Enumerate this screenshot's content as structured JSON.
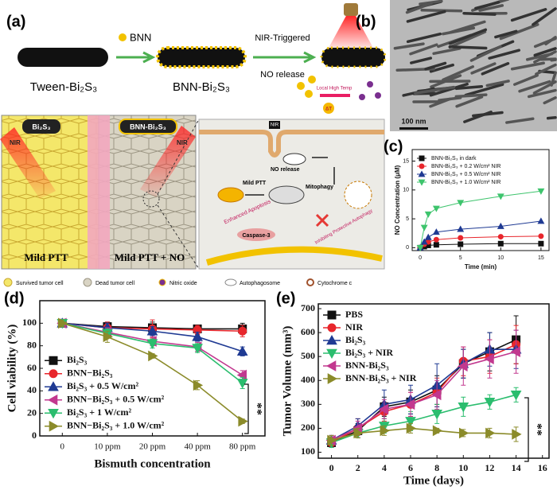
{
  "panel_labels": [
    "(a)",
    "(b)",
    "(c)",
    "(d)",
    "(e)"
  ],
  "schematic": {
    "tween": "Tween-Bi₂S₃",
    "bnn": "BNN",
    "bnn_bi2s3": "BNN-Bi₂S₃",
    "nir_triggered": "NIR-Triggered",
    "no_release": "NO release",
    "local_high_temp": "Local High Temp",
    "delta_t": "ΔT",
    "left_tag": "Bi₂S₃",
    "right_tag": "BNN-Bi₂S₃",
    "nir_labels": [
      "NIR",
      "NIR",
      "NIR"
    ],
    "mild_ptt": "Mild PTT",
    "mild_ptt_no": "Mild PTT + NO",
    "cell_no_release": "NO release",
    "cell_mild_ptt": "Mild PTT",
    "mitophagy": "Mitophagy",
    "enhanced_apoptosis": "Enhanced Apoptosis",
    "inhibiting_autophagy": "Inhibiting Protective Autophagy",
    "caspase": "Caspase-3",
    "legend": [
      "Survived tumor cell",
      "Dead tumor cell",
      "Nitric oxide",
      "Autophagosome",
      "Cytochrome c"
    ]
  },
  "tem_image": {
    "scale_bar": "100 nm"
  },
  "chart_data": [
    {
      "type": "line",
      "xlabel": "Time (min)",
      "ylabel": "NO Concentration (μM)",
      "x": [
        0,
        0.5,
        1,
        2,
        5,
        10,
        15
      ],
      "xlim": [
        -1,
        16
      ],
      "xticks": [
        0,
        5,
        10,
        15
      ],
      "ylim": [
        -0.5,
        17
      ],
      "yticks": [
        0,
        5,
        10,
        15
      ],
      "legend": "upper left",
      "series": [
        {
          "name": "BNN-Bi₂S₃ in dark",
          "color": "#111111",
          "marker": "square",
          "values": [
            0,
            0.2,
            0.4,
            0.5,
            0.6,
            0.7,
            0.7
          ]
        },
        {
          "name": "BNN-Bi₂S₃ + 0.2 W/cm² NIR",
          "color": "#e8262c",
          "marker": "circle",
          "values": [
            0,
            0.6,
            1.0,
            1.4,
            1.7,
            1.9,
            2.0
          ]
        },
        {
          "name": "BNN-Bi₂S₃ + 0.5 W/cm² NIR",
          "color": "#1f3a93",
          "marker": "triangle-up",
          "values": [
            0,
            1.0,
            1.8,
            2.7,
            3.2,
            3.7,
            4.6
          ]
        },
        {
          "name": "BNN-Bi₂S₃ + 1.0 W/cm² NIR",
          "color": "#3ec46d",
          "marker": "triangle-down",
          "values": [
            0,
            3.5,
            5.8,
            6.8,
            7.8,
            8.9,
            9.8
          ]
        }
      ]
    },
    {
      "type": "line",
      "xlabel": "Bismuth concentration",
      "ylabel": "Cell viability (%)",
      "categories": [
        "0",
        "10 ppm",
        "20 ppm",
        "40 ppm",
        "80 ppm"
      ],
      "ylim": [
        0,
        120
      ],
      "yticks": [
        0,
        20,
        40,
        60,
        80,
        100
      ],
      "legend": "lower left",
      "annotation": "**",
      "series": [
        {
          "name": "Bi₂S₃",
          "color": "#111111",
          "marker": "square",
          "values": [
            100,
            97,
            96,
            95,
            95
          ],
          "errors": [
            3,
            4,
            5,
            3,
            5
          ]
        },
        {
          "name": "BNN−Bi₂S₃",
          "color": "#e8262c",
          "marker": "circle",
          "values": [
            100,
            96,
            95,
            94,
            93
          ],
          "errors": [
            3,
            5,
            8,
            4,
            5
          ]
        },
        {
          "name": "Bi₂S₃ + 0.5 W/cm²",
          "color": "#1f3a93",
          "marker": "triangle-up",
          "values": [
            100,
            96,
            93,
            88,
            75
          ],
          "errors": [
            3,
            4,
            4,
            4,
            4
          ]
        },
        {
          "name": "BNN−Bi₂S₃ + 0.5 W/cm²",
          "color": "#c2388f",
          "marker": "triangle-left",
          "values": [
            100,
            92,
            84,
            79,
            54
          ],
          "errors": [
            3,
            4,
            4,
            4,
            4
          ]
        },
        {
          "name": "Bi₂S₃ + 1 W/cm²",
          "color": "#2bbd6e",
          "marker": "triangle-down",
          "values": [
            100,
            91,
            82,
            78,
            47
          ],
          "errors": [
            3,
            4,
            4,
            4,
            5
          ]
        },
        {
          "name": "BNN−Bi₂S₃ + 1.0 W/cm²",
          "color": "#8b8b2a",
          "marker": "triangle-right",
          "values": [
            100,
            88,
            71,
            45,
            13
          ],
          "errors": [
            3,
            5,
            2,
            4,
            2
          ]
        }
      ]
    },
    {
      "type": "line",
      "xlabel": "Time (days)",
      "ylabel": "Tumor Volume (mm³)",
      "x": [
        0,
        2,
        4,
        6,
        8,
        10,
        12,
        14
      ],
      "xlim": [
        -1,
        16.5
      ],
      "xticks": [
        0,
        2,
        4,
        6,
        8,
        10,
        12,
        14,
        16
      ],
      "ylim": [
        75,
        720
      ],
      "yticks": [
        100,
        200,
        300,
        400,
        500,
        600,
        700
      ],
      "legend": "upper left",
      "annotation": "**",
      "series": [
        {
          "name": "PBS",
          "color": "#111111",
          "marker": "square",
          "values": [
            140,
            190,
            290,
            310,
            360,
            470,
            520,
            570
          ],
          "errors": [
            20,
            30,
            40,
            50,
            60,
            60,
            80,
            100
          ]
        },
        {
          "name": "NIR",
          "color": "#e8262c",
          "marker": "circle",
          "values": [
            140,
            200,
            270,
            300,
            350,
            480,
            500,
            550
          ],
          "errors": [
            20,
            40,
            40,
            50,
            60,
            60,
            70,
            80
          ]
        },
        {
          "name": "Bi₂S₃",
          "color": "#1f3a93",
          "marker": "triangle-up",
          "values": [
            150,
            210,
            300,
            320,
            380,
            470,
            530,
            530
          ],
          "errors": [
            20,
            30,
            60,
            60,
            90,
            60,
            70,
            80
          ]
        },
        {
          "name": "Bi₂S₃ + NIR",
          "color": "#2bbd6e",
          "marker": "triangle-down",
          "values": [
            140,
            180,
            210,
            230,
            260,
            290,
            310,
            340
          ],
          "errors": [
            20,
            20,
            30,
            40,
            40,
            40,
            30,
            30
          ]
        },
        {
          "name": "BNN-Bi₂S₃",
          "color": "#c2388f",
          "marker": "triangle-left",
          "values": [
            150,
            200,
            280,
            300,
            340,
            460,
            490,
            520
          ],
          "errors": [
            20,
            30,
            40,
            50,
            60,
            80,
            80,
            90
          ]
        },
        {
          "name": "BNN-Bi₂S₃ + NIR",
          "color": "#8b8b2a",
          "marker": "triangle-right",
          "values": [
            150,
            180,
            190,
            200,
            190,
            180,
            180,
            175
          ],
          "errors": [
            20,
            20,
            20,
            20,
            10,
            15,
            20,
            30
          ]
        }
      ]
    }
  ]
}
